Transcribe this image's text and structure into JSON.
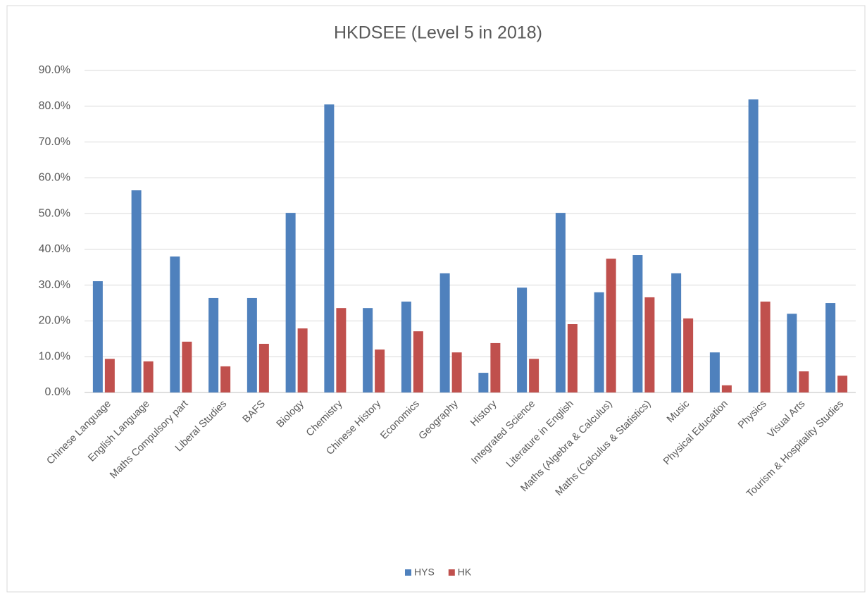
{
  "chart_data": {
    "type": "bar",
    "title": "HKDSEE  (Level 5 in 2018)",
    "categories": [
      "Chinese Language",
      "English Language",
      "Maths Compulsory part",
      "Liberal Studies",
      "BAFS",
      "Biology",
      "Chemistry",
      "Chinese History",
      "Economics",
      "Geography",
      "History",
      "Integrated Science",
      "Literature in English",
      "Maths (Algebra & Calculus)",
      "Maths (Calculus & Statistics)",
      "Music",
      "Physical Education",
      "Physics",
      "Visual Arts",
      "Tourism & Hospitality Studies"
    ],
    "series": [
      {
        "name": "HYS",
        "color": "#4f81bd",
        "values": [
          31.1,
          56.5,
          38.0,
          26.4,
          26.4,
          50.2,
          80.5,
          23.6,
          25.4,
          33.3,
          5.5,
          29.3,
          50.2,
          28.0,
          38.4,
          33.3,
          11.2,
          81.9,
          22.0,
          25.0
        ]
      },
      {
        "name": "HK",
        "color": "#c0504d",
        "values": [
          9.4,
          8.7,
          14.2,
          7.3,
          13.6,
          17.9,
          23.6,
          12.0,
          17.1,
          11.2,
          13.8,
          9.4,
          19.1,
          37.4,
          26.6,
          20.7,
          2.0,
          25.4,
          5.9,
          4.7
        ]
      }
    ],
    "ylim": [
      0,
      90
    ],
    "yticks": [
      {
        "value": 0,
        "label": "0.0%"
      },
      {
        "value": 10,
        "label": "10.0%"
      },
      {
        "value": 20,
        "label": "20.0%"
      },
      {
        "value": 30,
        "label": "30.0%"
      },
      {
        "value": 40,
        "label": "40.0%"
      },
      {
        "value": 50,
        "label": "50.0%"
      },
      {
        "value": 60,
        "label": "60.0%"
      },
      {
        "value": 70,
        "label": "70.0%"
      },
      {
        "value": 80,
        "label": "80.0%"
      },
      {
        "value": 90,
        "label": "90.0%"
      }
    ],
    "grid": true,
    "legend": "bottom"
  }
}
